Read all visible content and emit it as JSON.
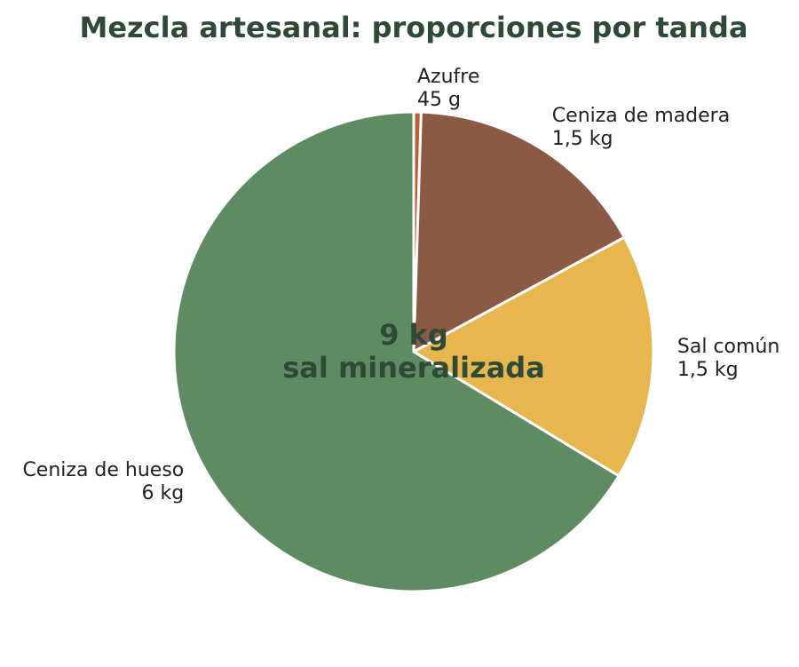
{
  "chart_data": {
    "type": "pie",
    "title": "Mezcla artesanal: proporciones por tanda",
    "center_label": {
      "line1": "9 kg",
      "line2": "sal mineralizada"
    },
    "slices": [
      {
        "name": "Azufre",
        "value_label": "45 g",
        "value": 0.045,
        "color": "#b8613a"
      },
      {
        "name": "Ceniza de madera",
        "value_label": "1,5 kg",
        "value": 1.5,
        "color": "#8b5a44"
      },
      {
        "name": "Sal común",
        "value_label": "1,5 kg",
        "value": 1.5,
        "color": "#e8b64f"
      },
      {
        "name": "Ceniza de hueso",
        "value_label": "6 kg",
        "value": 6,
        "color": "#5e8b62"
      }
    ],
    "start_angle": "top",
    "direction": "clockwise",
    "slice_edge_color": "#ffffff"
  }
}
